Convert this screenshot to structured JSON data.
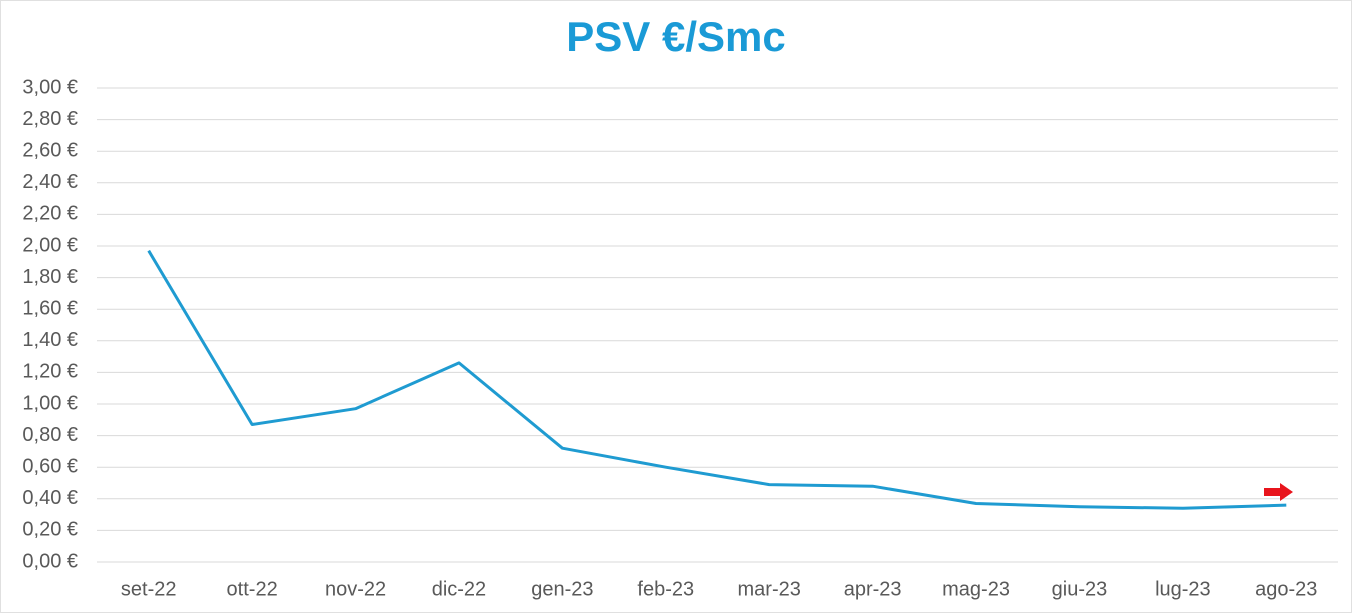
{
  "chart_data": {
    "type": "line",
    "title": "PSV €/Smc",
    "categories": [
      "set-22",
      "ott-22",
      "nov-22",
      "dic-22",
      "gen-23",
      "feb-23",
      "mar-23",
      "apr-23",
      "mag-23",
      "giu-23",
      "lug-23",
      "ago-23"
    ],
    "series": [
      {
        "name": "PSV",
        "color": "#1f9bd1",
        "values": [
          1.97,
          0.87,
          0.97,
          1.26,
          0.72,
          0.6,
          0.49,
          0.48,
          0.37,
          0.35,
          0.34,
          0.36
        ]
      }
    ],
    "ylim": [
      0,
      3
    ],
    "yticks": [
      {
        "value": 0,
        "label": "0,00 €"
      },
      {
        "value": 0.2,
        "label": "0,20 €"
      },
      {
        "value": 0.4,
        "label": "0,40 €"
      },
      {
        "value": 0.6,
        "label": "0,60 €"
      },
      {
        "value": 0.8,
        "label": "0,80 €"
      },
      {
        "value": 1,
        "label": "1,00 €"
      },
      {
        "value": 1.2,
        "label": "1,20 €"
      },
      {
        "value": 1.4,
        "label": "1,40 €"
      },
      {
        "value": 1.6,
        "label": "1,60 €"
      },
      {
        "value": 1.8,
        "label": "1,80 €"
      },
      {
        "value": 2,
        "label": "2,00 €"
      },
      {
        "value": 2.2,
        "label": "2,20 €"
      },
      {
        "value": 2.4,
        "label": "2,40 €"
      },
      {
        "value": 2.6,
        "label": "2,60 €"
      },
      {
        "value": 2.8,
        "label": "2,80 €"
      },
      {
        "value": 3,
        "label": "3,00 €"
      }
    ],
    "grid": true
  }
}
